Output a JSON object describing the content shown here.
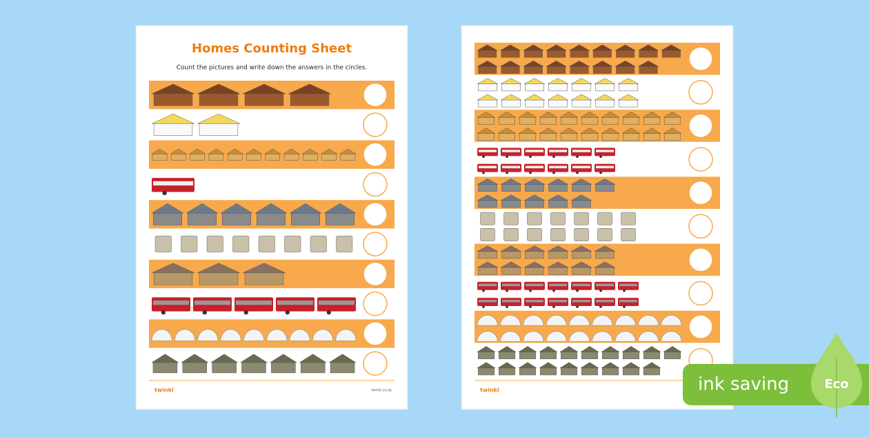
{
  "left_sheet": {
    "title": "Homes Counting Sheet",
    "instruction": "Count the pictures and write down the answers in the circles.",
    "footer_logo": "twinkl",
    "footer_url": "twinkl.co.uk"
  },
  "right_sheet": {
    "footer_logo": "twinkl"
  },
  "badge": {
    "label": "ink saving",
    "eco": "Eco"
  }
}
